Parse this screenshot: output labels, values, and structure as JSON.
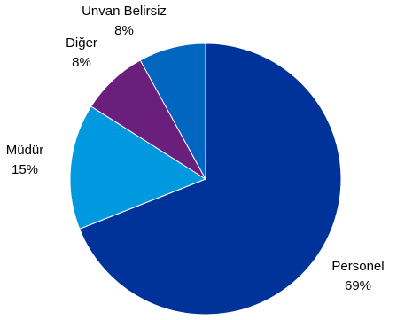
{
  "chart_data": {
    "type": "pie",
    "title": "",
    "slices": [
      {
        "label": "Personel",
        "value": 69,
        "percent_label": "69%",
        "color": "#003399"
      },
      {
        "label": "Müdür",
        "value": 15,
        "percent_label": "15%",
        "color": "#0099E0"
      },
      {
        "label": "Diğer",
        "value": 8,
        "percent_label": "8%",
        "color": "#6B1F7C"
      },
      {
        "label": "Unvan Belirsiz",
        "value": 8,
        "percent_label": "8%",
        "color": "#0066C0"
      }
    ],
    "start_angle_deg": 90,
    "direction": "clockwise",
    "legend": "none",
    "labels": "outside"
  }
}
